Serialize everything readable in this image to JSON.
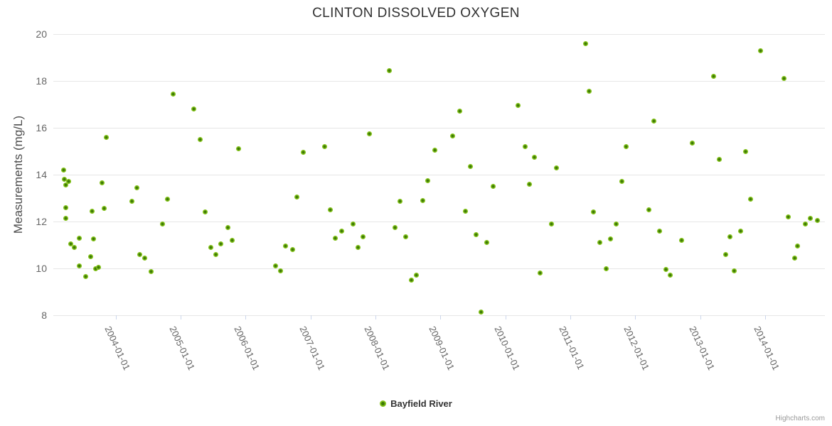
{
  "title": "CLINTON DISSOLVED OXYGEN",
  "credits_label": "Highcharts.com",
  "legend": {
    "items": [
      {
        "label": "Bayfield River"
      }
    ]
  },
  "colors": {
    "background": "#ffffff",
    "grid": "#e6e6e6",
    "axis_line": "#ccd6eb",
    "tick_label": "#666666",
    "title": "#303030",
    "axis_title": "#4d4d4d",
    "credits": "#999999",
    "marker_outer": "#82C119",
    "marker_center": "#3E7A07"
  },
  "chart_data": {
    "type": "scatter",
    "title": "CLINTON DISSOLVED OXYGEN",
    "xlabel": "",
    "ylabel": "Measurements (mg/L)",
    "grid": "horizontal-only",
    "legend_position": "bottom-center",
    "x_axis": {
      "min": 2003.04,
      "max": 2014.92,
      "ticks": [
        {
          "value": 2004,
          "label": "2004-01-01"
        },
        {
          "value": 2005,
          "label": "2005-01-01"
        },
        {
          "value": 2006,
          "label": "2006-01-01"
        },
        {
          "value": 2007,
          "label": "2007-01-01"
        },
        {
          "value": 2008,
          "label": "2008-01-01"
        },
        {
          "value": 2009,
          "label": "2009-01-01"
        },
        {
          "value": 2010,
          "label": "2010-01-01"
        },
        {
          "value": 2011,
          "label": "2011-01-01"
        },
        {
          "value": 2012,
          "label": "2012-01-01"
        },
        {
          "value": 2013,
          "label": "2013-01-01"
        },
        {
          "value": 2014,
          "label": "2014-01-01"
        }
      ]
    },
    "y_axis": {
      "min": 8,
      "max": 20,
      "tick_values": [
        20,
        18,
        16,
        14,
        12,
        10,
        8
      ]
    },
    "series": [
      {
        "name": "Bayfield River",
        "color": "#82C119",
        "marker_center_color": "#3E7A07",
        "points": [
          [
            2003.2,
            14.2
          ],
          [
            2003.21,
            13.8
          ],
          [
            2003.28,
            13.7
          ],
          [
            2003.23,
            13.55
          ],
          [
            2003.23,
            12.6
          ],
          [
            2003.23,
            12.15
          ],
          [
            2003.31,
            11.05
          ],
          [
            2003.36,
            10.9
          ],
          [
            2003.44,
            11.3
          ],
          [
            2003.44,
            10.1
          ],
          [
            2003.54,
            9.65
          ],
          [
            2003.61,
            10.5
          ],
          [
            2003.64,
            12.45
          ],
          [
            2003.66,
            11.25
          ],
          [
            2003.69,
            10.0
          ],
          [
            2003.73,
            10.05
          ],
          [
            2003.79,
            13.65
          ],
          [
            2003.82,
            12.55
          ],
          [
            2003.86,
            15.6
          ],
          [
            2004.25,
            12.85
          ],
          [
            2004.33,
            13.45
          ],
          [
            2004.37,
            10.6
          ],
          [
            2004.45,
            10.45
          ],
          [
            2004.55,
            9.85
          ],
          [
            2004.72,
            11.9
          ],
          [
            2004.8,
            12.95
          ],
          [
            2004.88,
            17.45
          ],
          [
            2005.2,
            16.8
          ],
          [
            2005.3,
            15.5
          ],
          [
            2005.38,
            12.4
          ],
          [
            2005.46,
            10.9
          ],
          [
            2005.54,
            10.6
          ],
          [
            2005.62,
            11.05
          ],
          [
            2005.73,
            11.75
          ],
          [
            2005.79,
            11.2
          ],
          [
            2005.89,
            15.1
          ],
          [
            2006.46,
            10.1
          ],
          [
            2006.54,
            9.9
          ],
          [
            2006.62,
            10.95
          ],
          [
            2006.72,
            10.8
          ],
          [
            2006.79,
            13.05
          ],
          [
            2006.89,
            14.95
          ],
          [
            2007.22,
            15.2
          ],
          [
            2007.31,
            12.5
          ],
          [
            2007.38,
            11.3
          ],
          [
            2007.48,
            11.6
          ],
          [
            2007.66,
            11.9
          ],
          [
            2007.73,
            10.9
          ],
          [
            2007.81,
            11.35
          ],
          [
            2007.91,
            15.75
          ],
          [
            2008.21,
            18.45
          ],
          [
            2008.3,
            11.75
          ],
          [
            2008.38,
            12.85
          ],
          [
            2008.46,
            11.35
          ],
          [
            2008.55,
            9.5
          ],
          [
            2008.63,
            9.7
          ],
          [
            2008.73,
            12.9
          ],
          [
            2008.81,
            13.75
          ],
          [
            2008.91,
            15.05
          ],
          [
            2009.19,
            15.65
          ],
          [
            2009.3,
            16.7
          ],
          [
            2009.38,
            12.45
          ],
          [
            2009.46,
            14.35
          ],
          [
            2009.55,
            11.45
          ],
          [
            2009.63,
            8.15
          ],
          [
            2009.71,
            11.1
          ],
          [
            2009.81,
            13.5
          ],
          [
            2010.2,
            16.95
          ],
          [
            2010.3,
            15.2
          ],
          [
            2010.37,
            13.6
          ],
          [
            2010.45,
            14.75
          ],
          [
            2010.54,
            9.8
          ],
          [
            2010.71,
            11.9
          ],
          [
            2010.79,
            14.3
          ],
          [
            2011.24,
            19.6
          ],
          [
            2011.29,
            17.55
          ],
          [
            2011.36,
            12.4
          ],
          [
            2011.46,
            11.1
          ],
          [
            2011.55,
            10.0
          ],
          [
            2011.62,
            11.25
          ],
          [
            2011.71,
            11.9
          ],
          [
            2011.79,
            13.7
          ],
          [
            2011.86,
            15.2
          ],
          [
            2012.21,
            12.5
          ],
          [
            2012.29,
            16.3
          ],
          [
            2012.37,
            11.6
          ],
          [
            2012.47,
            9.95
          ],
          [
            2012.54,
            9.7
          ],
          [
            2012.71,
            11.2
          ],
          [
            2012.88,
            15.35
          ],
          [
            2013.21,
            18.2
          ],
          [
            2013.29,
            14.65
          ],
          [
            2013.39,
            10.6
          ],
          [
            2013.46,
            11.35
          ],
          [
            2013.52,
            9.9
          ],
          [
            2013.62,
            11.6
          ],
          [
            2013.7,
            15.0
          ],
          [
            2013.78,
            12.95
          ],
          [
            2013.93,
            19.3
          ],
          [
            2014.29,
            18.1
          ],
          [
            2014.36,
            12.2
          ],
          [
            2014.45,
            10.45
          ],
          [
            2014.5,
            10.95
          ],
          [
            2014.62,
            11.9
          ],
          [
            2014.7,
            12.15
          ],
          [
            2014.8,
            12.05
          ]
        ]
      }
    ]
  }
}
